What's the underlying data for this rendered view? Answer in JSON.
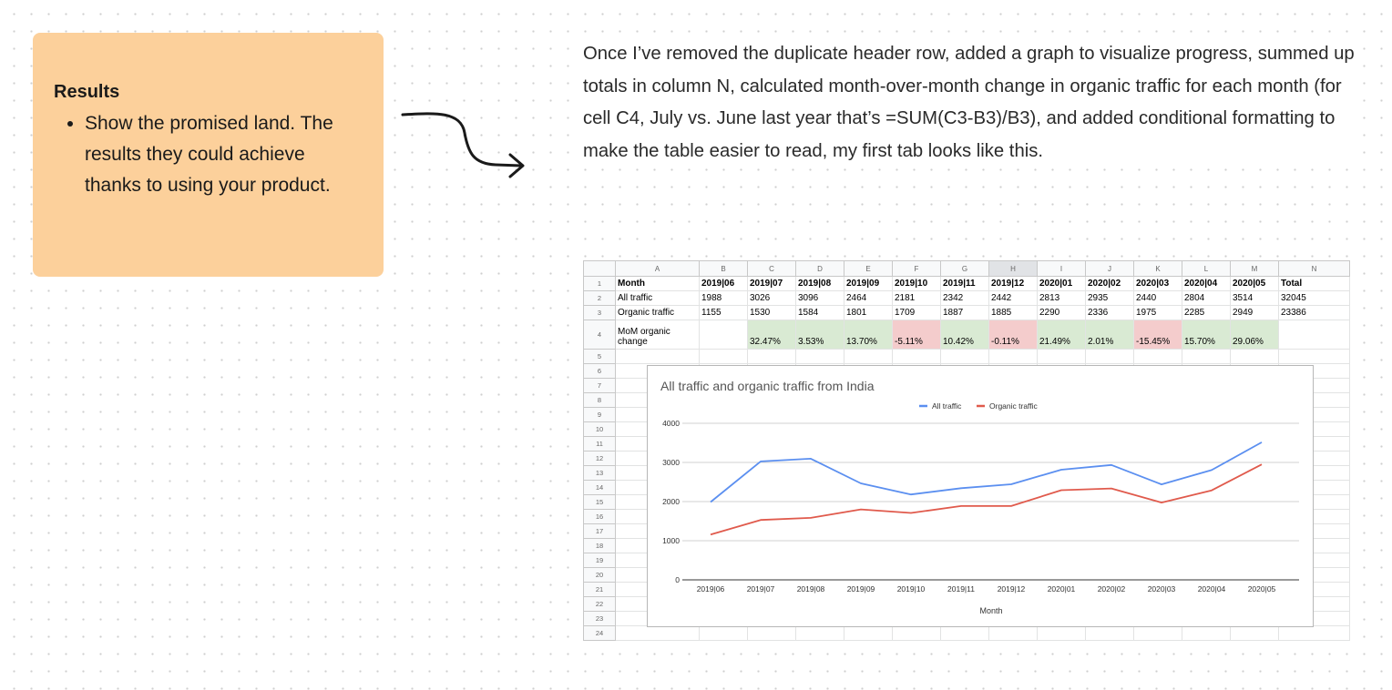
{
  "card": {
    "title": "Results",
    "bullet": "Show the promised land. The results they could achieve thanks to using your product."
  },
  "paragraph": "Once I’ve removed the duplicate header row, added a graph to visualize progress, summed up totals in column N, calculated month-over-month change in organic traffic for each month (for cell C4, July vs. June last year that’s =SUM(C3-B3)/B3), and added conditional formatting to make the table easier to read, my first tab looks like this.",
  "sheet": {
    "columns": [
      "A",
      "B",
      "C",
      "D",
      "E",
      "F",
      "G",
      "H",
      "I",
      "J",
      "K",
      "L",
      "M",
      "N"
    ],
    "selected_column": "H",
    "row_numbers": [
      "1",
      "2",
      "3",
      "4",
      "5",
      "6",
      "7",
      "8",
      "9",
      "10",
      "11",
      "12",
      "13",
      "14",
      "15",
      "16",
      "17",
      "18",
      "19",
      "20",
      "21",
      "22",
      "23",
      "24"
    ],
    "rows": [
      [
        "Month",
        "2019|06",
        "2019|07",
        "2019|08",
        "2019|09",
        "2019|10",
        "2019|11",
        "2019|12",
        "2020|01",
        "2020|02",
        "2020|03",
        "2020|04",
        "2020|05",
        "Total"
      ],
      [
        "All traffic",
        "1988",
        "3026",
        "3096",
        "2464",
        "2181",
        "2342",
        "2442",
        "2813",
        "2935",
        "2440",
        "2804",
        "3514",
        "32045"
      ],
      [
        "Organic traffic",
        "1155",
        "1530",
        "1584",
        "1801",
        "1709",
        "1887",
        "1885",
        "2290",
        "2336",
        "1975",
        "2285",
        "2949",
        "23386"
      ],
      [
        "MoM organic change",
        "",
        "32.47%",
        "3.53%",
        "13.70%",
        "-5.11%",
        "10.42%",
        "-0.11%",
        "21.49%",
        "2.01%",
        "-15.45%",
        "15.70%",
        "29.06%",
        ""
      ]
    ],
    "mom_formatting": [
      "none",
      "none",
      "positive",
      "positive",
      "positive",
      "negative",
      "positive",
      "negative",
      "positive",
      "positive",
      "negative",
      "positive",
      "positive",
      "none"
    ],
    "positive_color": "#d9ead3",
    "negative_color": "#f4cccc"
  },
  "chart_data": {
    "type": "line",
    "title": "All traffic and organic traffic from India",
    "xlabel": "Month",
    "ylabel": "",
    "categories": [
      "2019|06",
      "2019|07",
      "2019|08",
      "2019|09",
      "2019|10",
      "2019|11",
      "2019|12",
      "2020|01",
      "2020|02",
      "2020|03",
      "2020|04",
      "2020|05"
    ],
    "series": [
      {
        "name": "All traffic",
        "color": "#5b8ff0",
        "values": [
          1988,
          3026,
          3096,
          2464,
          2181,
          2342,
          2442,
          2813,
          2935,
          2440,
          2804,
          3514
        ]
      },
      {
        "name": "Organic traffic",
        "color": "#e05a4c",
        "values": [
          1155,
          1530,
          1584,
          1801,
          1709,
          1887,
          1885,
          2290,
          2336,
          1975,
          2285,
          2949
        ]
      }
    ],
    "yticks": [
      "0",
      "1000",
      "2000",
      "3000",
      "4000"
    ],
    "ylim": [
      0,
      4000
    ],
    "legend": "top-center",
    "grid": true
  }
}
